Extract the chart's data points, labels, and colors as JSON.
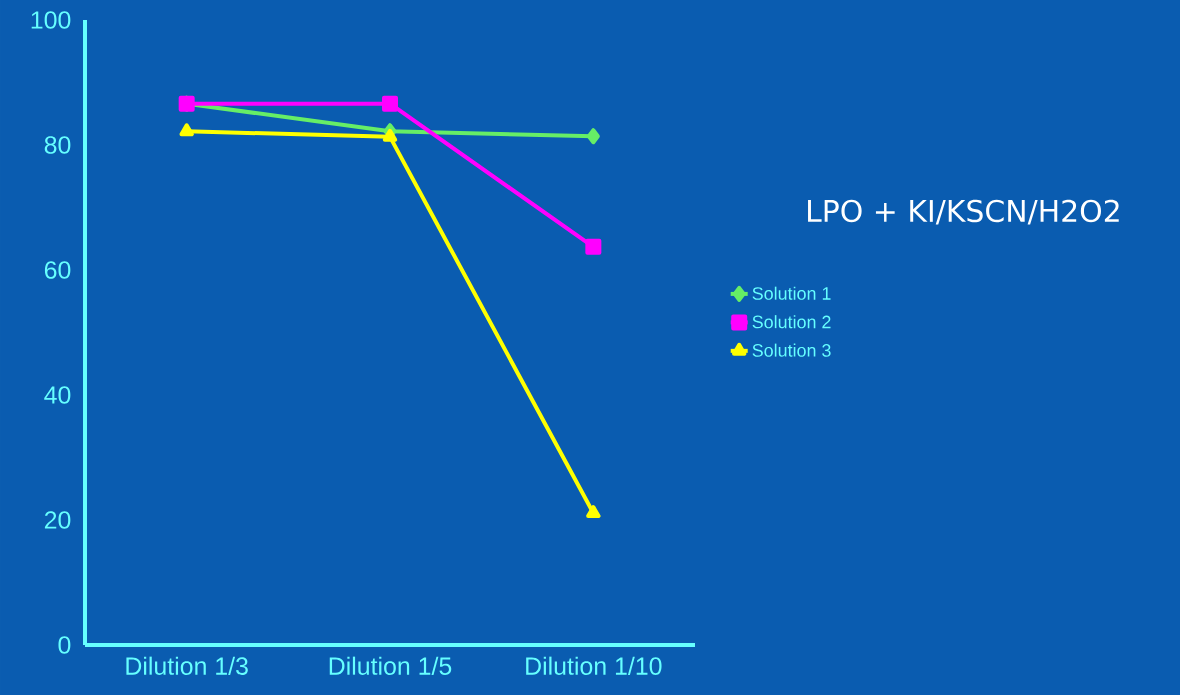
{
  "chart_data": {
    "type": "line",
    "title": "LPO + KI/KSCN/H2O2",
    "categories": [
      "Dilution 1/3",
      "Dilution 1/5",
      "Dilution 1/10"
    ],
    "series": [
      {
        "name": "Solution 1",
        "color": "#66ee66",
        "marker": "diamond",
        "values": [
          86.6,
          82.2,
          81.4
        ]
      },
      {
        "name": "Solution 2",
        "color": "#ff00ff",
        "marker": "square",
        "values": [
          86.6,
          86.6,
          63.7
        ]
      },
      {
        "name": "Solution 3",
        "color": "#ffff00",
        "marker": "triangle",
        "values": [
          82.2,
          81.3,
          21.1
        ]
      }
    ],
    "ylim": [
      0,
      100
    ],
    "yticks": [
      0,
      20,
      40,
      60,
      80,
      100
    ],
    "grid": false,
    "legend": "right"
  }
}
